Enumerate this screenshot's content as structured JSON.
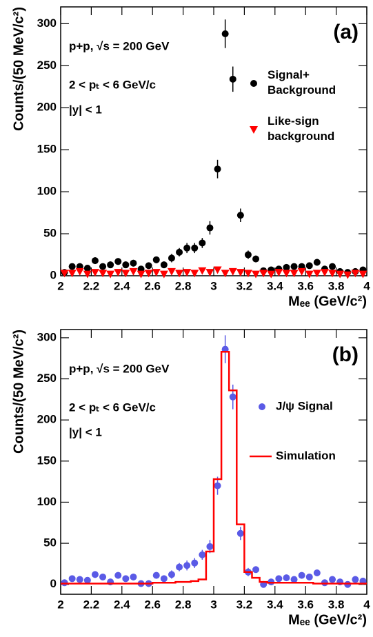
{
  "chart_data": [
    {
      "type": "scatter",
      "panel_label": "(a)",
      "x_label": "Mₑₑ (GeV/c²)",
      "y_label": "Counts/(50 MeV/c²)",
      "annotations": [
        "p+p, √s = 200 GeV",
        "2 < pₜ < 6 GeV/c",
        "|y| < 1"
      ],
      "x": [
        2.025,
        2.075,
        2.125,
        2.175,
        2.225,
        2.275,
        2.325,
        2.375,
        2.425,
        2.475,
        2.525,
        2.575,
        2.625,
        2.675,
        2.725,
        2.775,
        2.825,
        2.875,
        2.925,
        2.975,
        3.025,
        3.075,
        3.125,
        3.175,
        3.225,
        3.275,
        3.325,
        3.375,
        3.425,
        3.475,
        3.525,
        3.575,
        3.625,
        3.675,
        3.725,
        3.775,
        3.825,
        3.875,
        3.925,
        3.975
      ],
      "series": [
        {
          "name": "Signal+ Background",
          "color": "#000000",
          "marker": "circle",
          "values": [
            4,
            11,
            11,
            9,
            18,
            11,
            13,
            17,
            13,
            15,
            8,
            12,
            19,
            13,
            21,
            28,
            33,
            33,
            39,
            57,
            127,
            288,
            234,
            72,
            25,
            20,
            6,
            7,
            8,
            10,
            11,
            11,
            12,
            16,
            8,
            11,
            5,
            4,
            5,
            7
          ],
          "errors": [
            2,
            3,
            3,
            3,
            4,
            3,
            4,
            4,
            4,
            4,
            3,
            3,
            4,
            4,
            5,
            5,
            6,
            6,
            6,
            8,
            11,
            17,
            15,
            8,
            5,
            4,
            2,
            3,
            3,
            3,
            3,
            3,
            3,
            4,
            3,
            3,
            2,
            2,
            2,
            3
          ]
        },
        {
          "name": "Like-sign background",
          "color": "#ff0000",
          "marker": "triangle",
          "values": [
            3,
            3,
            5,
            2,
            4,
            3,
            2,
            4,
            3,
            5,
            2,
            3,
            4,
            2,
            5,
            3,
            4,
            3,
            6,
            4,
            7,
            3,
            5,
            4,
            3,
            2,
            3,
            2,
            4,
            3,
            3,
            5,
            2,
            3,
            4,
            3,
            2,
            1,
            3,
            2
          ]
        }
      ],
      "xlim": [
        2,
        4
      ],
      "xticks": [
        2,
        2.2,
        2.4,
        2.6,
        2.8,
        3,
        3.2,
        3.4,
        3.6,
        3.8,
        4
      ],
      "ylim": [
        0,
        320
      ],
      "yticks": [
        0,
        50,
        100,
        150,
        200,
        250,
        300
      ]
    },
    {
      "type": "scatter",
      "panel_label": "(b)",
      "x_label": "Mₑₑ (GeV/c²)",
      "y_label": "Counts/(50 MeV/c²)",
      "annotations": [
        "p+p, √s = 200 GeV",
        "2 < pₜ < 6 GeV/c",
        "|y| < 1"
      ],
      "x": [
        2.025,
        2.075,
        2.125,
        2.175,
        2.225,
        2.275,
        2.325,
        2.375,
        2.425,
        2.475,
        2.525,
        2.575,
        2.625,
        2.675,
        2.725,
        2.775,
        2.825,
        2.875,
        2.925,
        2.975,
        3.025,
        3.075,
        3.125,
        3.175,
        3.225,
        3.275,
        3.325,
        3.375,
        3.425,
        3.475,
        3.525,
        3.575,
        3.625,
        3.675,
        3.725,
        3.775,
        3.825,
        3.875,
        3.925,
        3.975
      ],
      "series": [
        {
          "name": "J/ψ Signal",
          "color": "#5a5ae6",
          "marker": "circle",
          "values": [
            2,
            7,
            6,
            5,
            12,
            9,
            3,
            11,
            7,
            9,
            1,
            1,
            11,
            7,
            12,
            21,
            23,
            26,
            36,
            46,
            120,
            286,
            228,
            62,
            15,
            18,
            0,
            3,
            7,
            8,
            6,
            11,
            9,
            14,
            2,
            6,
            3,
            0,
            6,
            4
          ],
          "errors": [
            2,
            3,
            3,
            3,
            4,
            3,
            4,
            4,
            4,
            4,
            3,
            3,
            4,
            4,
            5,
            5,
            6,
            6,
            6,
            8,
            11,
            17,
            15,
            8,
            5,
            4,
            2,
            3,
            3,
            3,
            3,
            3,
            3,
            4,
            3,
            3,
            2,
            2,
            2,
            3
          ]
        },
        {
          "name": "Simulation",
          "color": "#ff0000",
          "marker": "step",
          "values": [
            1,
            1,
            1,
            1,
            1,
            1,
            1,
            1,
            1,
            1,
            1,
            1,
            2,
            2,
            2,
            3,
            3,
            4,
            6,
            40,
            128,
            283,
            236,
            73,
            15,
            8,
            3,
            2,
            2,
            2,
            2,
            2,
            2,
            1,
            1,
            1,
            1,
            1,
            1,
            1
          ]
        }
      ],
      "xlim": [
        2,
        4
      ],
      "xticks": [
        2,
        2.2,
        2.4,
        2.6,
        2.8,
        3,
        3.2,
        3.4,
        3.6,
        3.8,
        4
      ],
      "ylim": [
        -12,
        310
      ],
      "yticks": [
        0,
        50,
        100,
        150,
        200,
        250,
        300
      ]
    }
  ]
}
